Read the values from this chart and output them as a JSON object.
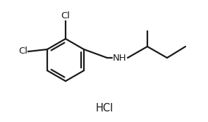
{
  "background_color": "#ffffff",
  "line_color": "#1a1a1a",
  "line_width": 1.6,
  "text_color": "#1a1a1a",
  "label_fontsize": 9.5,
  "hcl_fontsize": 10.5,
  "hcl_text": "HCl",
  "cl1_text": "Cl",
  "cl2_text": "Cl",
  "nh_text": "NH",
  "figure_width": 2.95,
  "figure_height": 1.73,
  "dpi": 100
}
